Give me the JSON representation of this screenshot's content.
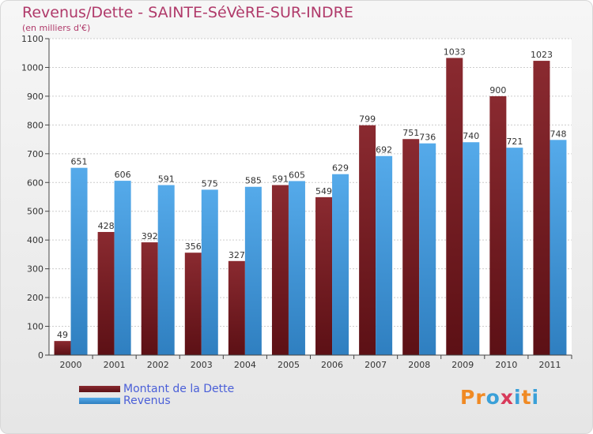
{
  "title": "Revenus/Dette - SAINTE-SéVèRE-SUR-INDRE",
  "subtitle": "(en milliers d'€)",
  "logo": {
    "text": "Proxiti",
    "letter_colors": [
      "#f08a24",
      "#f08a24",
      "#3aa0d8",
      "#d83a5a",
      "#3aa0d8",
      "#f08a24",
      "#3aa0d8"
    ]
  },
  "colors": {
    "dette": "#7b2025",
    "revenus": "#4aa0e0",
    "axis": "#444444",
    "grid": "#cccccc",
    "text": "#333333"
  },
  "chart_data": {
    "type": "bar",
    "title": "Revenus/Dette - SAINTE-SéVèRE-SUR-INDRE",
    "subtitle": "(en milliers d'€)",
    "categories": [
      "2000",
      "2001",
      "2002",
      "2003",
      "2004",
      "2005",
      "2006",
      "2007",
      "2008",
      "2009",
      "2010",
      "2011"
    ],
    "series": [
      {
        "name": "Montant de la Dette",
        "values": [
          49,
          428,
          392,
          356,
          327,
          591,
          549,
          799,
          751,
          1033,
          900,
          1023
        ]
      },
      {
        "name": "Revenus",
        "values": [
          651,
          606,
          591,
          575,
          585,
          605,
          629,
          692,
          736,
          740,
          721,
          748
        ]
      }
    ],
    "ylim": [
      0,
      1100
    ],
    "yticks": [
      0,
      100,
      200,
      300,
      400,
      500,
      600,
      700,
      800,
      900,
      1000,
      1100
    ],
    "grid": true,
    "legend": "bottom-left"
  }
}
